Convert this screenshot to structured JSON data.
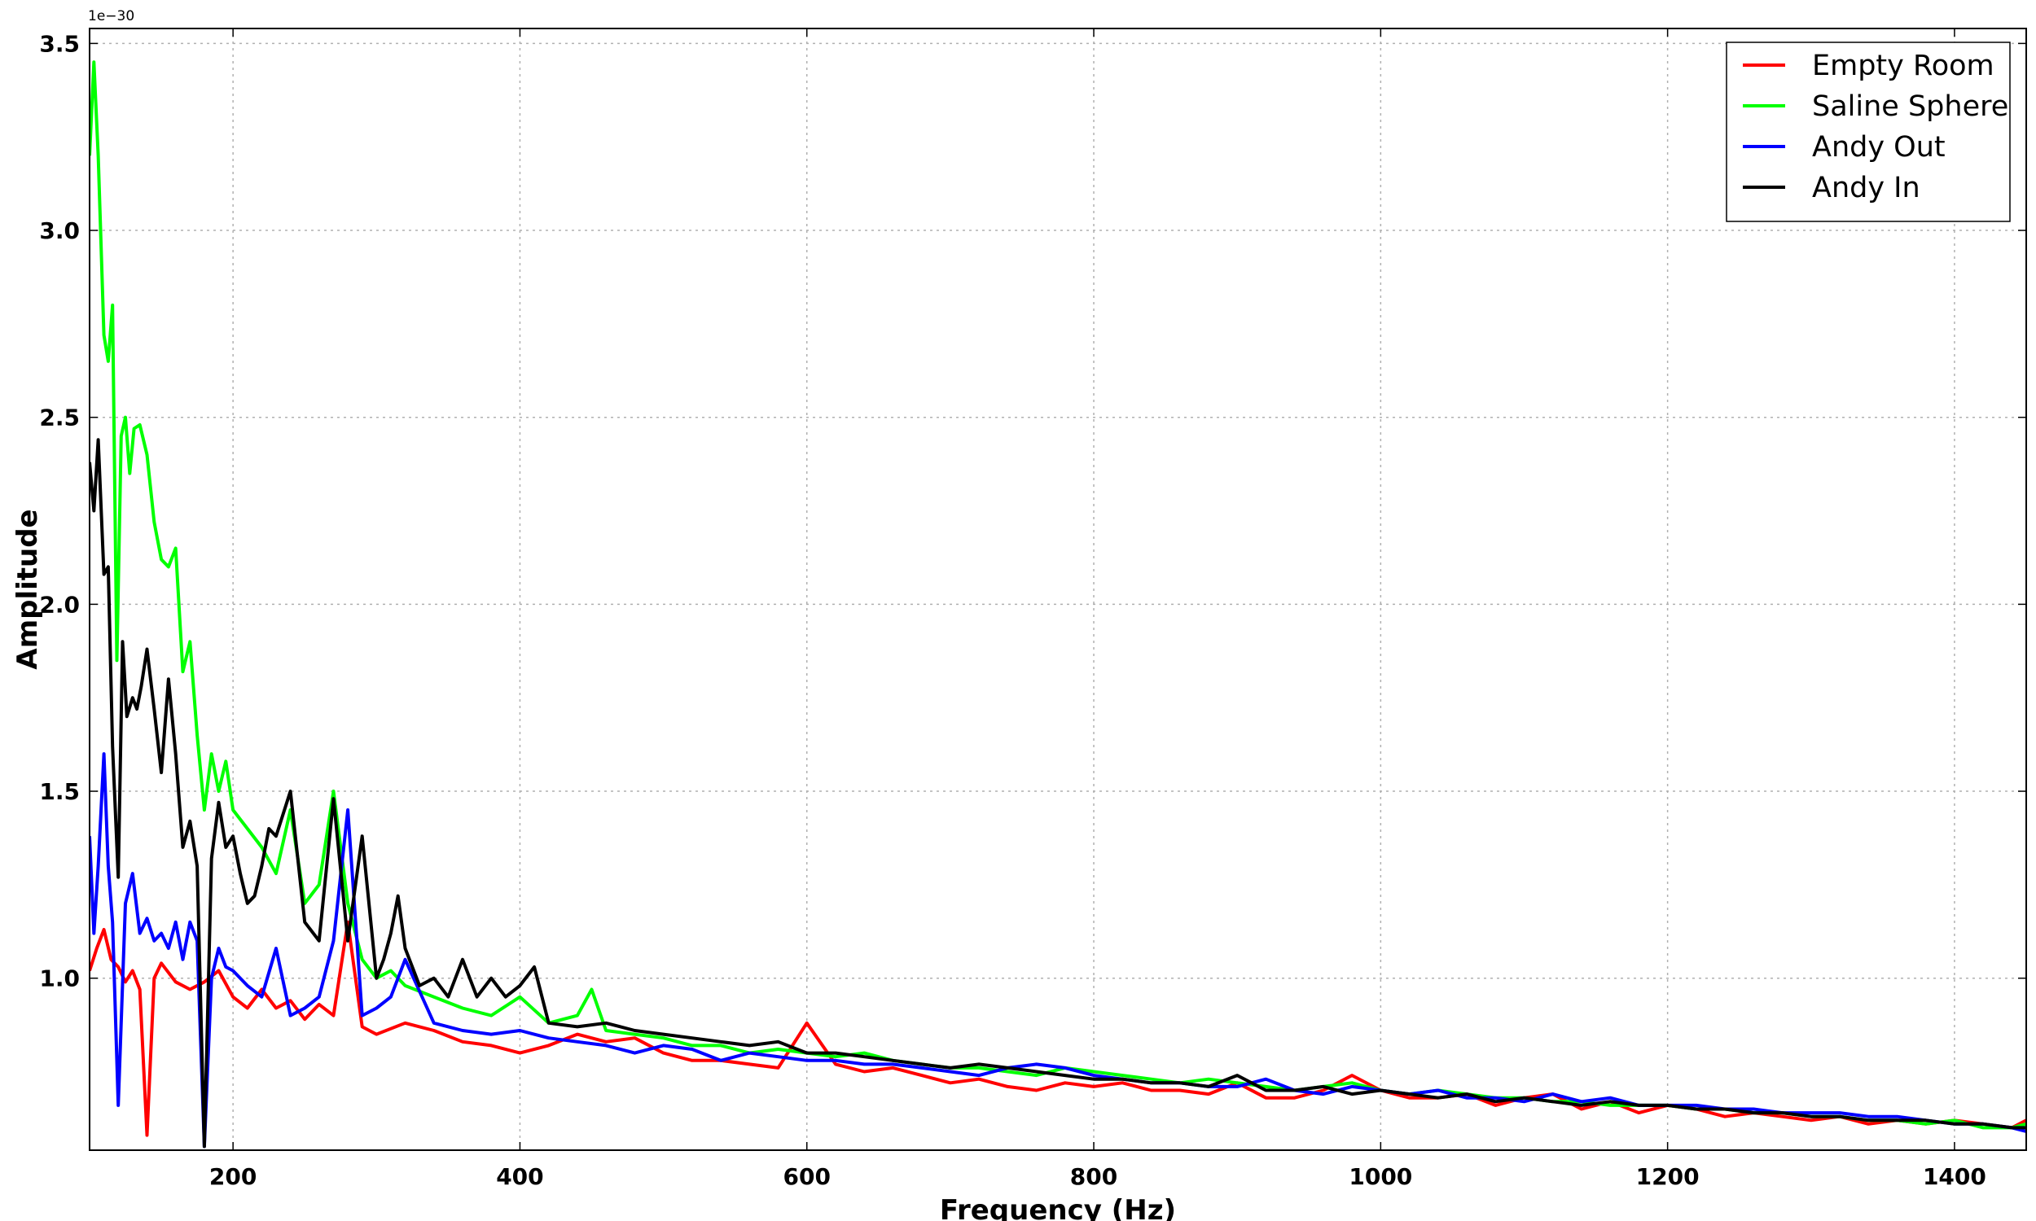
{
  "chart_data": {
    "type": "line",
    "title": "",
    "xlabel": "Frequency (Hz)",
    "ylabel": "Amplitude",
    "y_offset_label": "1e−30",
    "xlim": [
      100,
      1450
    ],
    "ylim": [
      0.54,
      3.54
    ],
    "x_ticks": [
      200,
      400,
      600,
      800,
      1000,
      1200,
      1400
    ],
    "x_tick_labels": [
      "200",
      "400",
      "600",
      "800",
      "1000",
      "1200",
      "1400"
    ],
    "y_ticks": [
      1.0,
      1.5,
      2.0,
      2.5,
      3.0,
      3.5
    ],
    "y_tick_labels": [
      "1.0",
      "1.5",
      "2.0",
      "2.5",
      "3.0",
      "3.5"
    ],
    "grid": true,
    "legend_position": "top-right",
    "series": [
      {
        "name": "Empty Room",
        "color": "#ff0000",
        "x": [
          100,
          105,
          110,
          115,
          120,
          125,
          130,
          135,
          140,
          145,
          150,
          160,
          170,
          180,
          190,
          200,
          210,
          220,
          230,
          240,
          250,
          260,
          270,
          280,
          290,
          300,
          320,
          340,
          360,
          380,
          400,
          420,
          440,
          460,
          480,
          500,
          520,
          540,
          560,
          580,
          600,
          620,
          640,
          660,
          680,
          700,
          720,
          740,
          760,
          780,
          800,
          820,
          840,
          860,
          880,
          900,
          920,
          940,
          960,
          980,
          1000,
          1020,
          1040,
          1060,
          1080,
          1100,
          1120,
          1140,
          1160,
          1180,
          1200,
          1220,
          1240,
          1260,
          1280,
          1300,
          1320,
          1340,
          1360,
          1380,
          1400,
          1420,
          1440,
          1450
        ],
        "y": [
          1.02,
          1.08,
          1.13,
          1.05,
          1.03,
          0.99,
          1.02,
          0.97,
          0.58,
          1.0,
          1.04,
          0.99,
          0.97,
          0.99,
          1.02,
          0.95,
          0.92,
          0.97,
          0.92,
          0.94,
          0.89,
          0.93,
          0.9,
          1.15,
          0.87,
          0.85,
          0.88,
          0.86,
          0.83,
          0.82,
          0.8,
          0.82,
          0.85,
          0.83,
          0.84,
          0.8,
          0.78,
          0.78,
          0.77,
          0.76,
          0.88,
          0.77,
          0.75,
          0.76,
          0.74,
          0.72,
          0.73,
          0.71,
          0.7,
          0.72,
          0.71,
          0.72,
          0.7,
          0.7,
          0.69,
          0.72,
          0.68,
          0.68,
          0.7,
          0.74,
          0.7,
          0.68,
          0.68,
          0.69,
          0.66,
          0.68,
          0.69,
          0.65,
          0.67,
          0.64,
          0.66,
          0.65,
          0.63,
          0.64,
          0.63,
          0.62,
          0.63,
          0.61,
          0.62,
          0.61,
          0.62,
          0.61,
          0.6,
          0.62
        ]
      },
      {
        "name": "Saline Sphere",
        "color": "#00ff00",
        "x": [
          100,
          103,
          106,
          110,
          113,
          116,
          119,
          122,
          125,
          128,
          131,
          135,
          140,
          145,
          150,
          155,
          160,
          165,
          170,
          175,
          180,
          185,
          190,
          195,
          200,
          210,
          220,
          230,
          240,
          250,
          260,
          270,
          280,
          290,
          300,
          310,
          320,
          340,
          360,
          380,
          400,
          420,
          440,
          450,
          460,
          480,
          500,
          520,
          540,
          560,
          580,
          600,
          620,
          640,
          660,
          680,
          700,
          720,
          740,
          760,
          780,
          800,
          820,
          840,
          860,
          880,
          900,
          920,
          940,
          960,
          980,
          1000,
          1020,
          1040,
          1060,
          1080,
          1100,
          1120,
          1140,
          1160,
          1180,
          1200,
          1220,
          1240,
          1260,
          1280,
          1300,
          1320,
          1340,
          1360,
          1380,
          1400,
          1420,
          1440,
          1450
        ],
        "y": [
          3.2,
          3.45,
          3.2,
          2.72,
          2.65,
          2.8,
          1.85,
          2.45,
          2.5,
          2.35,
          2.47,
          2.48,
          2.4,
          2.22,
          2.12,
          2.1,
          2.15,
          1.82,
          1.9,
          1.65,
          1.45,
          1.6,
          1.5,
          1.58,
          1.45,
          1.4,
          1.35,
          1.28,
          1.45,
          1.2,
          1.25,
          1.5,
          1.2,
          1.05,
          1.0,
          1.02,
          0.98,
          0.95,
          0.92,
          0.9,
          0.95,
          0.88,
          0.9,
          0.97,
          0.86,
          0.85,
          0.84,
          0.82,
          0.82,
          0.8,
          0.81,
          0.8,
          0.79,
          0.8,
          0.78,
          0.77,
          0.76,
          0.76,
          0.75,
          0.74,
          0.76,
          0.75,
          0.74,
          0.73,
          0.72,
          0.73,
          0.72,
          0.71,
          0.7,
          0.71,
          0.72,
          0.7,
          0.69,
          0.7,
          0.69,
          0.68,
          0.68,
          0.67,
          0.67,
          0.66,
          0.66,
          0.66,
          0.65,
          0.65,
          0.64,
          0.64,
          0.63,
          0.63,
          0.62,
          0.62,
          0.61,
          0.62,
          0.6,
          0.6,
          0.61
        ]
      },
      {
        "name": "Andy Out",
        "color": "#0000ff",
        "x": [
          100,
          103,
          106,
          110,
          113,
          116,
          120,
          125,
          130,
          135,
          140,
          145,
          150,
          155,
          160,
          165,
          170,
          175,
          180,
          185,
          190,
          195,
          200,
          210,
          220,
          230,
          240,
          250,
          260,
          270,
          280,
          290,
          300,
          310,
          320,
          340,
          360,
          380,
          400,
          420,
          440,
          460,
          480,
          500,
          520,
          540,
          560,
          580,
          600,
          620,
          640,
          660,
          680,
          700,
          720,
          740,
          760,
          780,
          800,
          820,
          840,
          860,
          880,
          900,
          920,
          940,
          960,
          980,
          1000,
          1020,
          1040,
          1060,
          1080,
          1100,
          1120,
          1140,
          1160,
          1180,
          1200,
          1220,
          1240,
          1260,
          1280,
          1300,
          1320,
          1340,
          1360,
          1380,
          1400,
          1420,
          1440,
          1450
        ],
        "y": [
          1.38,
          1.12,
          1.3,
          1.6,
          1.3,
          1.15,
          0.66,
          1.2,
          1.28,
          1.12,
          1.16,
          1.1,
          1.12,
          1.08,
          1.15,
          1.05,
          1.15,
          1.1,
          0.55,
          1.0,
          1.08,
          1.03,
          1.02,
          0.98,
          0.95,
          1.08,
          0.9,
          0.92,
          0.95,
          1.1,
          1.45,
          0.9,
          0.92,
          0.95,
          1.05,
          0.88,
          0.86,
          0.85,
          0.86,
          0.84,
          0.83,
          0.82,
          0.8,
          0.82,
          0.81,
          0.78,
          0.8,
          0.79,
          0.78,
          0.78,
          0.77,
          0.77,
          0.76,
          0.75,
          0.74,
          0.76,
          0.77,
          0.76,
          0.74,
          0.73,
          0.72,
          0.72,
          0.71,
          0.71,
          0.73,
          0.7,
          0.69,
          0.71,
          0.7,
          0.69,
          0.7,
          0.68,
          0.68,
          0.67,
          0.69,
          0.67,
          0.68,
          0.66,
          0.66,
          0.66,
          0.65,
          0.65,
          0.64,
          0.64,
          0.64,
          0.63,
          0.63,
          0.62,
          0.61,
          0.61,
          0.6,
          0.59
        ]
      },
      {
        "name": "Andy In",
        "color": "#000000",
        "x": [
          100,
          103,
          106,
          110,
          113,
          116,
          120,
          123,
          126,
          130,
          133,
          136,
          140,
          145,
          150,
          155,
          160,
          165,
          170,
          175,
          180,
          185,
          190,
          195,
          200,
          205,
          210,
          215,
          220,
          225,
          230,
          240,
          250,
          260,
          270,
          280,
          290,
          300,
          305,
          310,
          315,
          320,
          330,
          340,
          350,
          360,
          370,
          380,
          390,
          400,
          410,
          420,
          440,
          460,
          480,
          500,
          520,
          540,
          560,
          580,
          600,
          620,
          640,
          660,
          680,
          700,
          720,
          740,
          760,
          780,
          800,
          820,
          840,
          860,
          880,
          900,
          920,
          940,
          960,
          980,
          1000,
          1020,
          1040,
          1060,
          1080,
          1100,
          1120,
          1140,
          1160,
          1180,
          1200,
          1220,
          1240,
          1260,
          1280,
          1300,
          1320,
          1340,
          1360,
          1380,
          1400,
          1420,
          1440,
          1450
        ],
        "y": [
          2.38,
          2.25,
          2.44,
          2.08,
          2.1,
          1.62,
          1.27,
          1.9,
          1.7,
          1.75,
          1.72,
          1.78,
          1.88,
          1.72,
          1.55,
          1.8,
          1.6,
          1.35,
          1.42,
          1.3,
          0.55,
          1.32,
          1.47,
          1.35,
          1.38,
          1.28,
          1.2,
          1.22,
          1.3,
          1.4,
          1.38,
          1.5,
          1.15,
          1.1,
          1.48,
          1.1,
          1.38,
          1.0,
          1.05,
          1.12,
          1.22,
          1.08,
          0.98,
          1.0,
          0.95,
          1.05,
          0.95,
          1.0,
          0.95,
          0.98,
          1.03,
          0.88,
          0.87,
          0.88,
          0.86,
          0.85,
          0.84,
          0.83,
          0.82,
          0.83,
          0.8,
          0.8,
          0.79,
          0.78,
          0.77,
          0.76,
          0.77,
          0.76,
          0.75,
          0.74,
          0.73,
          0.73,
          0.72,
          0.72,
          0.71,
          0.74,
          0.7,
          0.7,
          0.71,
          0.69,
          0.7,
          0.69,
          0.68,
          0.69,
          0.67,
          0.68,
          0.67,
          0.66,
          0.67,
          0.66,
          0.66,
          0.65,
          0.65,
          0.64,
          0.64,
          0.63,
          0.63,
          0.62,
          0.62,
          0.62,
          0.61,
          0.61,
          0.6,
          0.6
        ]
      }
    ]
  }
}
